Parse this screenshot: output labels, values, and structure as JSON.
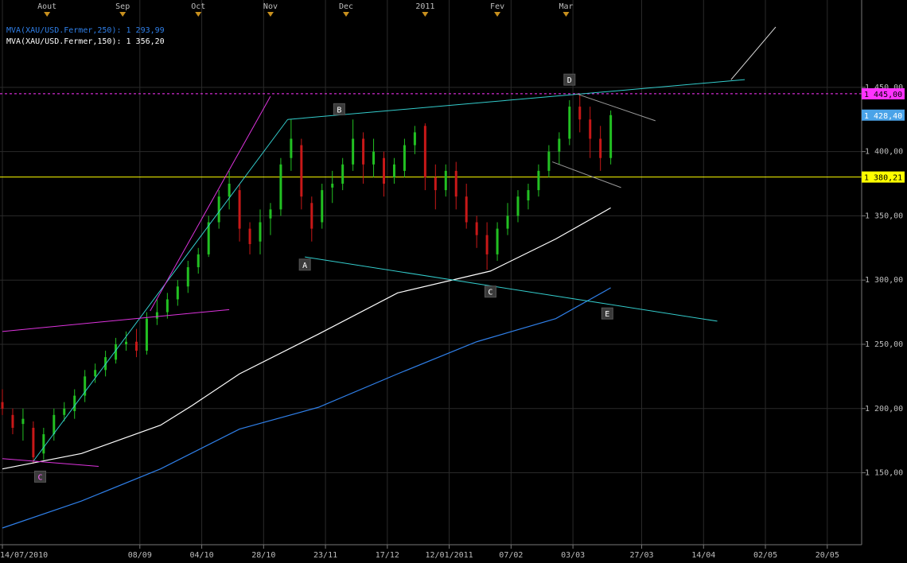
{
  "chart_data": {
    "type": "candlestick",
    "x": [
      "2010-07-14",
      "2010-07-19",
      "2010-07-22",
      "2010-07-27",
      "2010-07-30",
      "2010-08-04",
      "2010-08-09",
      "2010-08-12",
      "2010-08-17",
      "2010-08-20",
      "2010-08-25",
      "2010-08-30",
      "2010-09-02",
      "2010-09-07",
      "2010-09-10",
      "2010-09-15",
      "2010-09-20",
      "2010-09-23",
      "2010-09-28",
      "2010-10-01",
      "2010-10-06",
      "2010-10-11",
      "2010-10-14",
      "2010-10-19",
      "2010-10-22",
      "2010-10-27",
      "2010-11-01",
      "2010-11-04",
      "2010-11-09",
      "2010-11-12",
      "2010-11-17",
      "2010-11-22",
      "2010-11-25",
      "2010-11-30",
      "2010-12-03",
      "2010-12-08",
      "2010-12-13",
      "2010-12-16",
      "2010-12-21",
      "2010-12-24",
      "2010-12-29",
      "2011-01-03",
      "2011-01-06",
      "2011-01-11",
      "2011-01-14",
      "2011-01-19",
      "2011-01-24",
      "2011-01-27",
      "2011-02-01",
      "2011-02-04",
      "2011-02-09",
      "2011-02-14",
      "2011-02-17",
      "2011-02-22",
      "2011-02-25",
      "2011-03-02",
      "2011-03-07",
      "2011-03-10",
      "2011-03-15",
      "2011-03-18"
    ],
    "open": [
      1205,
      1195,
      1188,
      1185,
      1165,
      1180,
      1195,
      1198,
      1210,
      1225,
      1230,
      1238,
      1250,
      1252,
      1245,
      1270,
      1275,
      1285,
      1295,
      1310,
      1320,
      1345,
      1365,
      1370,
      1340,
      1330,
      1348,
      1355,
      1395,
      1405,
      1360,
      1345,
      1372,
      1375,
      1390,
      1410,
      1390,
      1395,
      1380,
      1385,
      1405,
      1420,
      1380,
      1370,
      1385,
      1365,
      1345,
      1335,
      1320,
      1340,
      1350,
      1362,
      1370,
      1385,
      1400,
      1410,
      1435,
      1425,
      1410,
      1395
    ],
    "high": [
      1215,
      1200,
      1200,
      1190,
      1185,
      1200,
      1205,
      1215,
      1230,
      1235,
      1245,
      1255,
      1260,
      1262,
      1275,
      1285,
      1290,
      1300,
      1315,
      1325,
      1350,
      1370,
      1385,
      1375,
      1345,
      1355,
      1360,
      1395,
      1425,
      1410,
      1365,
      1375,
      1385,
      1395,
      1425,
      1415,
      1410,
      1400,
      1395,
      1410,
      1420,
      1422,
      1390,
      1390,
      1392,
      1375,
      1350,
      1345,
      1345,
      1360,
      1370,
      1375,
      1390,
      1405,
      1415,
      1440,
      1445,
      1435,
      1420,
      1432
    ],
    "low": [
      1195,
      1180,
      1175,
      1157,
      1160,
      1175,
      1190,
      1192,
      1205,
      1220,
      1225,
      1235,
      1245,
      1240,
      1242,
      1265,
      1270,
      1280,
      1290,
      1305,
      1318,
      1340,
      1355,
      1330,
      1320,
      1320,
      1335,
      1350,
      1385,
      1355,
      1330,
      1340,
      1360,
      1370,
      1385,
      1375,
      1380,
      1365,
      1375,
      1380,
      1398,
      1370,
      1355,
      1365,
      1355,
      1340,
      1325,
      1308,
      1315,
      1335,
      1345,
      1355,
      1365,
      1380,
      1390,
      1405,
      1415,
      1395,
      1385,
      1390
    ],
    "close": [
      1200,
      1185,
      1192,
      1162,
      1180,
      1195,
      1200,
      1210,
      1225,
      1230,
      1240,
      1250,
      1252,
      1245,
      1270,
      1275,
      1285,
      1295,
      1310,
      1320,
      1345,
      1365,
      1375,
      1340,
      1328,
      1345,
      1355,
      1390,
      1410,
      1365,
      1340,
      1370,
      1375,
      1390,
      1410,
      1390,
      1400,
      1375,
      1390,
      1405,
      1415,
      1380,
      1370,
      1385,
      1365,
      1345,
      1335,
      1320,
      1340,
      1350,
      1365,
      1370,
      1385,
      1400,
      1410,
      1435,
      1425,
      1410,
      1395,
      1428.4
    ],
    "up_color": "#22c022",
    "down_color": "#c81818",
    "series": [
      {
        "name": "MVA(XAU/USD.Fermer,250): 1 293,99",
        "color": "#2f7fe8",
        "x": [
          "2010-07-14",
          "2010-08-16",
          "2010-09-16",
          "2010-10-19",
          "2010-11-19",
          "2010-12-22",
          "2011-01-24",
          "2011-02-24",
          "2011-03-18"
        ],
        "values": [
          1107,
          1128,
          1153,
          1184,
          1201,
          1227,
          1252,
          1270,
          1293.99
        ]
      },
      {
        "name": "MVA(XAU/USD.Fermer,150): 1 356,20",
        "color": "#ffffff",
        "x": [
          "2010-07-14",
          "2010-08-16",
          "2010-09-16",
          "2010-09-29",
          "2010-10-19",
          "2010-11-19",
          "2010-12-22",
          "2011-01-28",
          "2011-02-24",
          "2011-03-18"
        ],
        "values": [
          1153,
          1165,
          1187,
          1202,
          1227,
          1258,
          1290,
          1307,
          1332,
          1356.2
        ]
      }
    ],
    "hlines": [
      {
        "value": 1445,
        "label": "1 445,00",
        "color": "#ff33ff",
        "style": "dashed"
      },
      {
        "value": 1380.21,
        "label": "1 380,21",
        "color": "#ffff00",
        "style": "solid"
      }
    ],
    "last_price": {
      "value": 1428.4,
      "label": "1 428,40",
      "color": "#4aa3e8"
    },
    "trendlines": [
      {
        "color": "#33cccc",
        "x": [
          "2010-07-27",
          "2010-11-08"
        ],
        "values": [
          1159,
          1425
        ]
      },
      {
        "color": "#33cccc",
        "x": [
          "2010-11-08",
          "2011-04-26"
        ],
        "values": [
          1425,
          1456
        ]
      },
      {
        "color": "#dddddd",
        "x": [
          "2011-04-22",
          "2011-05-05"
        ],
        "values": [
          1456,
          1497
        ]
      },
      {
        "color": "#33cccc",
        "x": [
          "2010-11-15",
          "2011-04-18"
        ],
        "values": [
          1318,
          1268
        ]
      },
      {
        "color": "#dd33dd",
        "x": [
          "2010-09-13",
          "2010-11-01"
        ],
        "values": [
          1276,
          1443
        ]
      },
      {
        "color": "#dd33dd",
        "x": [
          "2010-07-14",
          "2010-10-14"
        ],
        "values": [
          1260,
          1277
        ]
      },
      {
        "color": "#dd33dd",
        "x": [
          "2010-07-14",
          "2010-08-23"
        ],
        "values": [
          1161,
          1155
        ]
      },
      {
        "color": "#999999",
        "x": [
          "2011-03-04",
          "2011-03-31"
        ],
        "values": [
          1445,
          1424
        ]
      },
      {
        "color": "#999999",
        "x": [
          "2011-02-23",
          "2011-03-21"
        ],
        "values": [
          1392,
          1372
        ]
      }
    ],
    "annotations": [
      {
        "label": "C",
        "x": "2010-07-29",
        "y": 1147,
        "color": "#ff66ff"
      },
      {
        "label": "A",
        "x": "2010-11-15",
        "y": 1312,
        "color": "#ffffff"
      },
      {
        "label": "B",
        "x": "2010-11-29",
        "y": 1433,
        "color": "#ffffff"
      },
      {
        "label": "C",
        "x": "2011-01-28",
        "y": 1291,
        "color": "#ffffff"
      },
      {
        "label": "D",
        "x": "2011-03-02",
        "y": 1456,
        "color": "#ffffff"
      },
      {
        "label": "E",
        "x": "2011-03-17",
        "y": 1274,
        "color": "#ffffff"
      }
    ],
    "xlim": [
      "2010-07-14",
      "2011-05-30"
    ],
    "ylim": [
      1094,
      1518
    ],
    "yticks": [
      {
        "value": 1150,
        "label": "1 150,00"
      },
      {
        "value": 1200,
        "label": "1 200,00"
      },
      {
        "value": 1250,
        "label": "1 250,00"
      },
      {
        "value": 1300,
        "label": "1 300,00"
      },
      {
        "value": 1350,
        "label": "1 350,00"
      },
      {
        "value": 1400,
        "label": "1 400,00"
      },
      {
        "value": 1450,
        "label": "1 450,00"
      }
    ],
    "xticks": [
      {
        "value": "2010-07-14",
        "label": "14/07/2010"
      },
      {
        "value": "2010-09-08",
        "label": "08/09"
      },
      {
        "value": "2010-10-04",
        "label": "04/10"
      },
      {
        "value": "2010-10-28",
        "label": "28/10"
      },
      {
        "value": "2010-11-23",
        "label": "23/11"
      },
      {
        "value": "2010-12-17",
        "label": "17/12"
      },
      {
        "value": "2011-01-12",
        "label": "12/01/2011"
      },
      {
        "value": "2011-02-07",
        "label": "07/02"
      },
      {
        "value": "2011-03-03",
        "label": "03/03"
      },
      {
        "value": "2011-03-27",
        "label": "27/03"
      },
      {
        "value": "2011-04-14",
        "label": "14/04"
      },
      {
        "value": "2011-05-02",
        "label": "02/05"
      },
      {
        "value": "2011-05-20",
        "label": "20/05"
      }
    ],
    "top_ticks": [
      {
        "value": "2010-08-02",
        "label": "Aout"
      },
      {
        "value": "2010-09-01",
        "label": "Sep"
      },
      {
        "value": "2010-10-01",
        "label": "Oct"
      },
      {
        "value": "2010-11-01",
        "label": "Nov"
      },
      {
        "value": "2010-12-01",
        "label": "Dec"
      },
      {
        "value": "2011-01-03",
        "label": "2011"
      },
      {
        "value": "2011-02-01",
        "label": "Fev"
      },
      {
        "value": "2011-03-01",
        "label": "Mar"
      }
    ],
    "grid": true
  }
}
